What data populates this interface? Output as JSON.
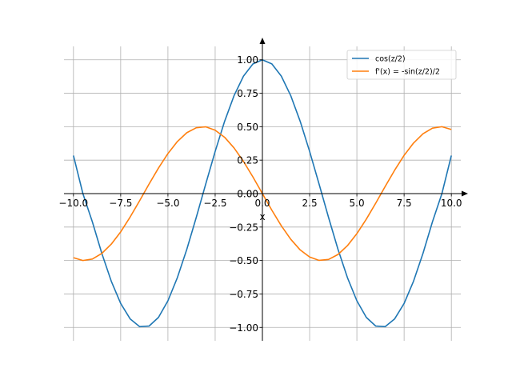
{
  "chart_data": {
    "type": "line",
    "xlabel": "x",
    "ylabel": "",
    "xlim": [
      -10.5,
      10.5
    ],
    "ylim": [
      -1.1,
      1.1
    ],
    "grid": true,
    "legend_position": "top-right",
    "x_ticks": [
      -10,
      -7.5,
      -5,
      -2.5,
      0,
      2.5,
      5,
      7.5,
      10
    ],
    "x_tick_labels": [
      "−10.0",
      "−7.5",
      "−5.0",
      "−2.5",
      "0.0",
      "2.5",
      "5.0",
      "7.5",
      "10.0"
    ],
    "y_ticks": [
      -1,
      -0.75,
      -0.5,
      -0.25,
      0,
      0.25,
      0.5,
      0.75,
      1
    ],
    "y_tick_labels": [
      "−1.00",
      "−0.75",
      "−0.50",
      "−0.25",
      "0.00",
      "0.25",
      "0.50",
      "0.75",
      "1.00"
    ],
    "series": [
      {
        "name": "cos(z/2)",
        "color": "#1f77b4",
        "x": [
          -10,
          -9.5,
          -9,
          -8.5,
          -8,
          -7.5,
          -7,
          -6.5,
          -6,
          -5.5,
          -5,
          -4.5,
          -4,
          -3.5,
          -3,
          -2.5,
          -2,
          -1.5,
          -1,
          -0.5,
          0,
          0.5,
          1,
          1.5,
          2,
          2.5,
          3,
          3.5,
          4,
          4.5,
          5,
          5.5,
          6,
          6.5,
          7,
          7.5,
          8,
          8.5,
          9,
          9.5,
          10
        ],
        "y": [
          0.284,
          0.0,
          -0.211,
          -0.446,
          -0.654,
          -0.821,
          -0.936,
          -0.994,
          -0.99,
          -0.925,
          -0.801,
          -0.628,
          -0.416,
          -0.178,
          0.071,
          0.315,
          0.54,
          0.732,
          0.878,
          0.969,
          1.0,
          0.969,
          0.878,
          0.732,
          0.54,
          0.315,
          0.071,
          -0.178,
          -0.416,
          -0.628,
          -0.801,
          -0.925,
          -0.99,
          -0.994,
          -0.936,
          -0.821,
          -0.654,
          -0.446,
          -0.211,
          0.0,
          0.284
        ]
      },
      {
        "name": "f'(x) = -sin(z/2)/2",
        "color": "#ff7f0e",
        "x": [
          -10,
          -9.5,
          -9,
          -8.5,
          -8,
          -7.5,
          -7,
          -6.5,
          -6,
          -5.5,
          -5,
          -4.5,
          -4,
          -3.5,
          -3,
          -2.5,
          -2,
          -1.5,
          -1,
          -0.5,
          0,
          0.5,
          1,
          1.5,
          2,
          2.5,
          3,
          3.5,
          4,
          4.5,
          5,
          5.5,
          6,
          6.5,
          7,
          7.5,
          8,
          8.5,
          9,
          9.5,
          10
        ],
        "y": [
          -0.479,
          -0.5,
          -0.489,
          -0.447,
          -0.378,
          -0.286,
          -0.175,
          -0.054,
          0.071,
          0.191,
          0.299,
          0.389,
          0.455,
          0.492,
          0.499,
          0.474,
          0.421,
          0.341,
          0.24,
          0.124,
          0.0,
          -0.124,
          -0.24,
          -0.341,
          -0.421,
          -0.474,
          -0.499,
          -0.492,
          -0.455,
          -0.389,
          -0.299,
          -0.191,
          -0.071,
          0.054,
          0.175,
          0.286,
          0.378,
          0.447,
          0.489,
          0.5,
          0.479
        ]
      }
    ]
  }
}
